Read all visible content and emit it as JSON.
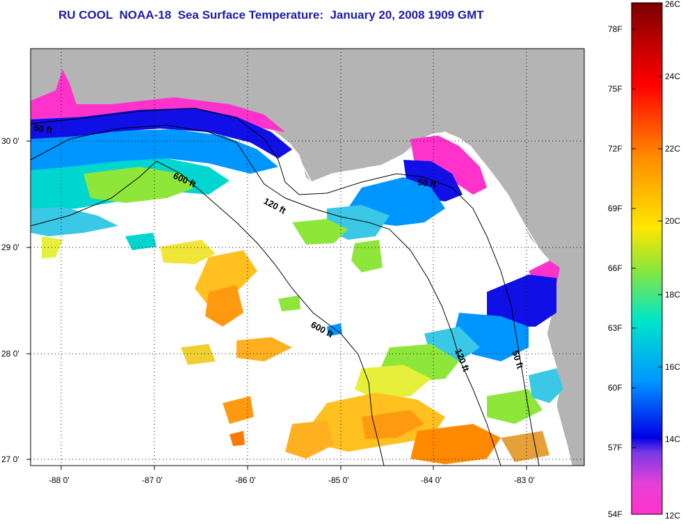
{
  "title": "RU COOL  NOAA-18  Sea Surface Temperature:  January 20, 2008 1909 GMT",
  "map": {
    "lon_ticks": [
      "-88 0'",
      "-87 0'",
      "-86 0'",
      "-85 0'",
      "-84 0'",
      "-83 0'"
    ],
    "lat_ticks": [
      "30 0'",
      "29 0'",
      "28 0'",
      "27 0'"
    ]
  },
  "depth_contours": [
    {
      "label": "50 ft"
    },
    {
      "label": "600 ft"
    },
    {
      "label": "120 ft"
    },
    {
      "label": "50 ft"
    },
    {
      "label": "600 ft"
    },
    {
      "label": "120 ft"
    },
    {
      "label": "50 ft"
    }
  ],
  "colorbar": {
    "celsius_labels": [
      "26C",
      "24C",
      "22C",
      "20C",
      "18C",
      "16C",
      "14C",
      "12C"
    ],
    "fahrenheit_labels": [
      "78F",
      "75F",
      "72F",
      "69F",
      "66F",
      "63F",
      "60F",
      "57F",
      "54F"
    ],
    "colors": [
      "#7a0000",
      "#ff0000",
      "#ff8a00",
      "#ffe600",
      "#8ee63a",
      "#00e6c8",
      "#0096ff",
      "#0000e6",
      "#ff33cc"
    ]
  },
  "colors": {
    "land": "#b4b4b4",
    "cloud": "#ffffff",
    "title": "#1c1ca8"
  }
}
